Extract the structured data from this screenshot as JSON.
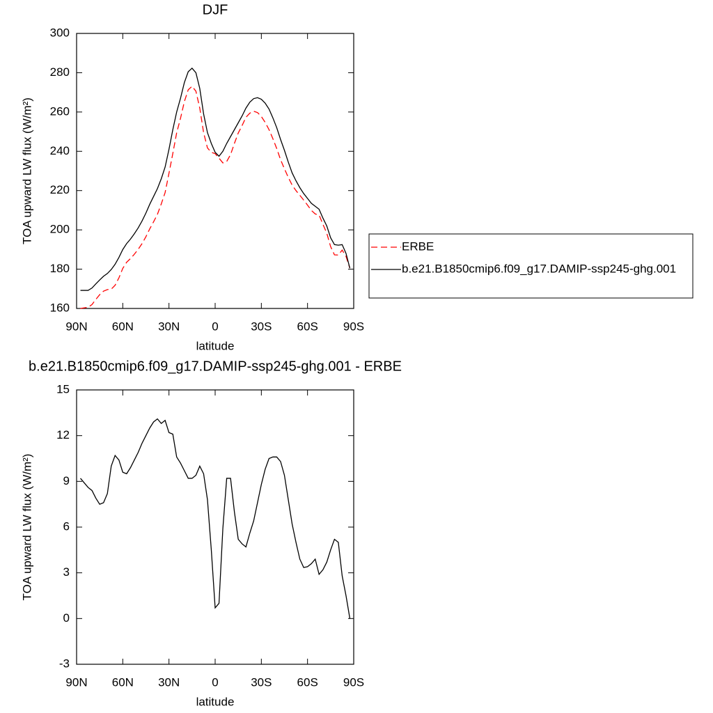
{
  "chart_data": [
    {
      "type": "line",
      "title": "DJF",
      "x_label": "latitude",
      "y_label": "TOA upward LW flux (W/m²)",
      "x": [
        87.5,
        85,
        82.5,
        80,
        77.5,
        75,
        72.5,
        70,
        67.5,
        65,
        62.5,
        60,
        57.5,
        55,
        52.5,
        50,
        47.5,
        45,
        42.5,
        40,
        37.5,
        35,
        32.5,
        30,
        27.5,
        25,
        22.5,
        20,
        17.5,
        15,
        12.5,
        10,
        7.5,
        5,
        2.5,
        0,
        -2.5,
        -5,
        -7.5,
        -10,
        -12.5,
        -15,
        -17.5,
        -20,
        -22.5,
        -25,
        -27.5,
        -30,
        -32.5,
        -35,
        -37.5,
        -40,
        -42.5,
        -45,
        -47.5,
        -50,
        -52.5,
        -55,
        -57.5,
        -60,
        -62.5,
        -65,
        -67.5,
        -70,
        -72.5,
        -75,
        -77.5,
        -80,
        -82.5,
        -85,
        -87.5
      ],
      "series": [
        {
          "name": "ERBE",
          "color": "#ff0000",
          "dashed": true,
          "values": [
            160.0,
            160.3,
            160.6,
            162.0,
            164.6,
            167.0,
            168.8,
            169.6,
            169.8,
            171.8,
            175.6,
            180.4,
            183.5,
            185.4,
            187.6,
            190.1,
            193.0,
            196.5,
            200.5,
            204.1,
            207.9,
            213.2,
            219.0,
            228.8,
            238.9,
            249.4,
            256.8,
            265.3,
            271.3,
            273.1,
            270.6,
            262.0,
            249.5,
            241.7,
            239.5,
            238.8,
            236.5,
            234.1,
            234.8,
            238.3,
            244.0,
            249.3,
            253.1,
            257.3,
            259.4,
            260.4,
            259.7,
            257.7,
            254.7,
            251.0,
            246.4,
            241.4,
            235.7,
            231.1,
            226.7,
            222.8,
            220.0,
            217.6,
            215.15,
            212.6,
            209.9,
            208.1,
            207.6,
            202.8,
            198.3,
            191.5,
            187.3,
            187.2,
            189.7,
            186.5,
            180.5
          ]
        },
        {
          "name": "b.e21.B1850cmip6.f09_g17.DAMIP-ssp245-ghg.001",
          "color": "#000000",
          "dashed": false,
          "values": [
            169.2,
            169.2,
            169.2,
            170.4,
            172.5,
            174.5,
            176.4,
            177.8,
            179.8,
            182.5,
            186,
            190,
            193,
            195.3,
            198,
            201,
            204.5,
            208.5,
            213,
            217,
            221,
            226,
            232,
            241,
            251,
            260,
            267,
            275,
            280.5,
            282.3,
            280,
            272,
            259,
            249.5,
            244,
            239.5,
            237.5,
            240,
            244,
            247.5,
            251,
            254.5,
            258,
            262,
            265,
            266.8,
            267.3,
            266.5,
            264.5,
            261.5,
            257,
            252,
            246,
            240.5,
            234.5,
            229,
            225,
            221.5,
            218.5,
            216,
            213.5,
            212,
            210.5,
            206,
            202,
            196,
            192.5,
            192.2,
            192.5,
            188,
            180.5
          ]
        }
      ],
      "xlim": [
        90,
        -90
      ],
      "xticks": [
        {
          "value": 90,
          "label": "90N"
        },
        {
          "value": 60,
          "label": "60N"
        },
        {
          "value": 30,
          "label": "30N"
        },
        0,
        {
          "value": -30,
          "label": "30S"
        },
        {
          "value": -60,
          "label": "60S"
        },
        {
          "value": -90,
          "label": "90S"
        }
      ],
      "ylim": [
        160,
        300
      ],
      "yticks": [
        160,
        180,
        200,
        220,
        240,
        260,
        280,
        300
      ],
      "legend": "right"
    },
    {
      "type": "line",
      "title": "b.e21.B1850cmip6.f09_g17.DAMIP-ssp245-ghg.001 - ERBE",
      "x_label": "latitude",
      "y_label": "TOA upward LW flux (W/m²)",
      "x": [
        87.5,
        85,
        82.5,
        80,
        77.5,
        75,
        72.5,
        70,
        67.5,
        65,
        62.5,
        60,
        57.5,
        55,
        52.5,
        50,
        47.5,
        45,
        42.5,
        40,
        37.5,
        35,
        32.5,
        30,
        27.5,
        25,
        22.5,
        20,
        17.5,
        15,
        12.5,
        10,
        7.5,
        5,
        2.5,
        0,
        -2.5,
        -5,
        -7.5,
        -10,
        -12.5,
        -15,
        -17.5,
        -20,
        -22.5,
        -25,
        -27.5,
        -30,
        -32.5,
        -35,
        -37.5,
        -40,
        -42.5,
        -45,
        -47.5,
        -50,
        -52.5,
        -55,
        -57.5,
        -60,
        -62.5,
        -65,
        -67.5,
        -70,
        -72.5,
        -75,
        -77.5,
        -80,
        -82.5,
        -85,
        -87.5
      ],
      "values": [
        9.2,
        8.9,
        8.6,
        8.4,
        7.9,
        7.5,
        7.6,
        8.2,
        10.0,
        10.7,
        10.4,
        9.6,
        9.5,
        9.9,
        10.4,
        10.9,
        11.5,
        12.0,
        12.5,
        12.9,
        13.1,
        12.8,
        13.0,
        12.2,
        12.1,
        10.6,
        10.2,
        9.7,
        9.2,
        9.2,
        9.4,
        10.0,
        9.5,
        7.8,
        4.5,
        0.7,
        1.0,
        5.9,
        9.2,
        9.2,
        7.0,
        5.2,
        4.9,
        4.7,
        5.6,
        6.4,
        7.6,
        8.8,
        9.8,
        10.5,
        10.6,
        10.6,
        10.3,
        9.4,
        7.8,
        6.2,
        5.0,
        3.9,
        3.35,
        3.4,
        3.6,
        3.9,
        2.9,
        3.2,
        3.7,
        4.5,
        5.2,
        5.0,
        2.8,
        1.5,
        0.0
      ],
      "color": "#000000",
      "xlim": [
        90,
        -90
      ],
      "xticks": [
        {
          "value": 90,
          "label": "90N"
        },
        {
          "value": 60,
          "label": "60N"
        },
        {
          "value": 30,
          "label": "30N"
        },
        0,
        {
          "value": -30,
          "label": "30S"
        },
        {
          "value": -60,
          "label": "60S"
        },
        {
          "value": -90,
          "label": "90S"
        }
      ],
      "ylim": [
        -3,
        15
      ],
      "yticks": [
        -3,
        0,
        3,
        6,
        9,
        12,
        15
      ]
    }
  ]
}
